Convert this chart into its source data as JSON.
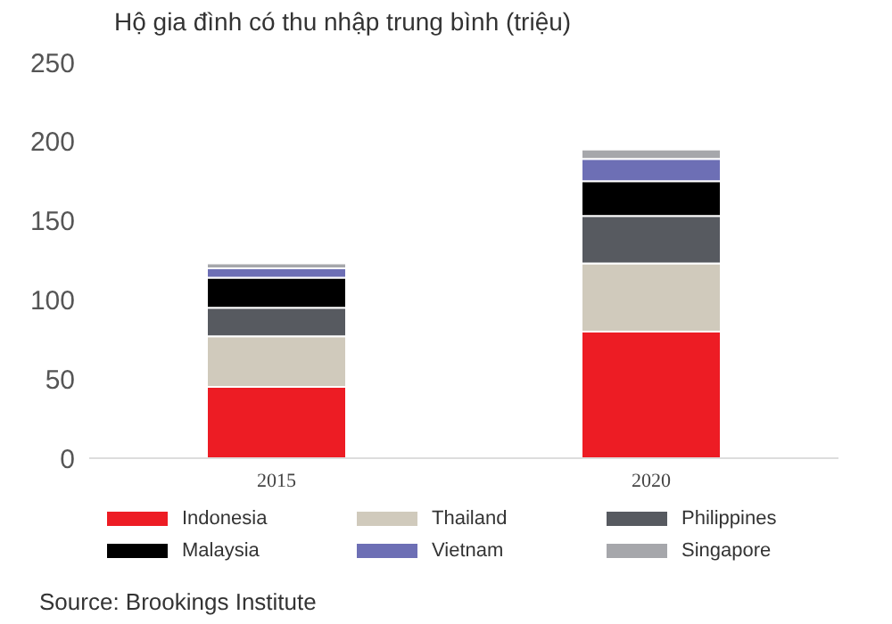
{
  "chart_data": {
    "type": "bar",
    "title": "Hộ gia đình có thu nhập trung bình (triệu)",
    "categories": [
      "2015",
      "2020"
    ],
    "stacked": true,
    "ylim": [
      0,
      250
    ],
    "yticks": [
      0,
      50,
      100,
      150,
      200,
      250
    ],
    "grid": false,
    "legend": "bottom",
    "annotations": [
      "Source: Brookings Institute"
    ],
    "series": [
      {
        "name": "Indonesia",
        "color": "#ed1c24",
        "values": [
          45,
          80
        ]
      },
      {
        "name": "Thailand",
        "color": "#d0cabc",
        "values": [
          32,
          43
        ]
      },
      {
        "name": "Philippines",
        "color": "#575a60",
        "values": [
          18,
          30
        ]
      },
      {
        "name": "Malaysia",
        "color": "#000000",
        "values": [
          19,
          22
        ]
      },
      {
        "name": "Vietnam",
        "color": "#6d6fb5",
        "values": [
          6,
          14
        ]
      },
      {
        "name": "Singapore",
        "color": "#a6a7ab",
        "values": [
          3,
          6
        ]
      }
    ]
  }
}
